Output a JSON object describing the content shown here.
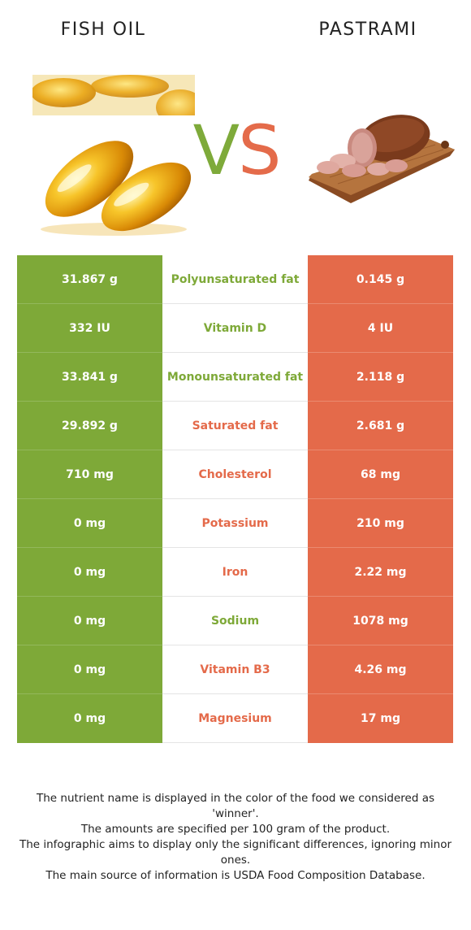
{
  "foods": {
    "left": {
      "name": "FISH OIL",
      "color": "#7ea938"
    },
    "right": {
      "name": "PASTRAMI",
      "color": "#e46a4a"
    },
    "vs_v": "V",
    "vs_s": "S"
  },
  "rows": [
    {
      "nutrient": "Polyunsaturated fat",
      "left": "31.867 g",
      "right": "0.145 g",
      "winner": "left"
    },
    {
      "nutrient": "Vitamin D",
      "left": "332 IU",
      "right": "4 IU",
      "winner": "left"
    },
    {
      "nutrient": "Monounsaturated fat",
      "left": "33.841 g",
      "right": "2.118 g",
      "winner": "left"
    },
    {
      "nutrient": "Saturated fat",
      "left": "29.892 g",
      "right": "2.681 g",
      "winner": "right"
    },
    {
      "nutrient": "Cholesterol",
      "left": "710 mg",
      "right": "68 mg",
      "winner": "right"
    },
    {
      "nutrient": "Potassium",
      "left": "0 mg",
      "right": "210 mg",
      "winner": "right"
    },
    {
      "nutrient": "Iron",
      "left": "0 mg",
      "right": "2.22 mg",
      "winner": "right"
    },
    {
      "nutrient": "Sodium",
      "left": "0 mg",
      "right": "1078 mg",
      "winner": "left"
    },
    {
      "nutrient": "Vitamin B3",
      "left": "0 mg",
      "right": "4.26 mg",
      "winner": "right"
    },
    {
      "nutrient": "Magnesium",
      "left": "0 mg",
      "right": "17 mg",
      "winner": "right"
    }
  ],
  "footnote": [
    "The nutrient name is displayed in the color of the food we considered as 'winner'.",
    "The amounts are specified per 100 gram of the product.",
    "The infographic aims to display only the significant differences, ignoring minor ones.",
    "The main source of information is USDA Food Composition Database."
  ]
}
